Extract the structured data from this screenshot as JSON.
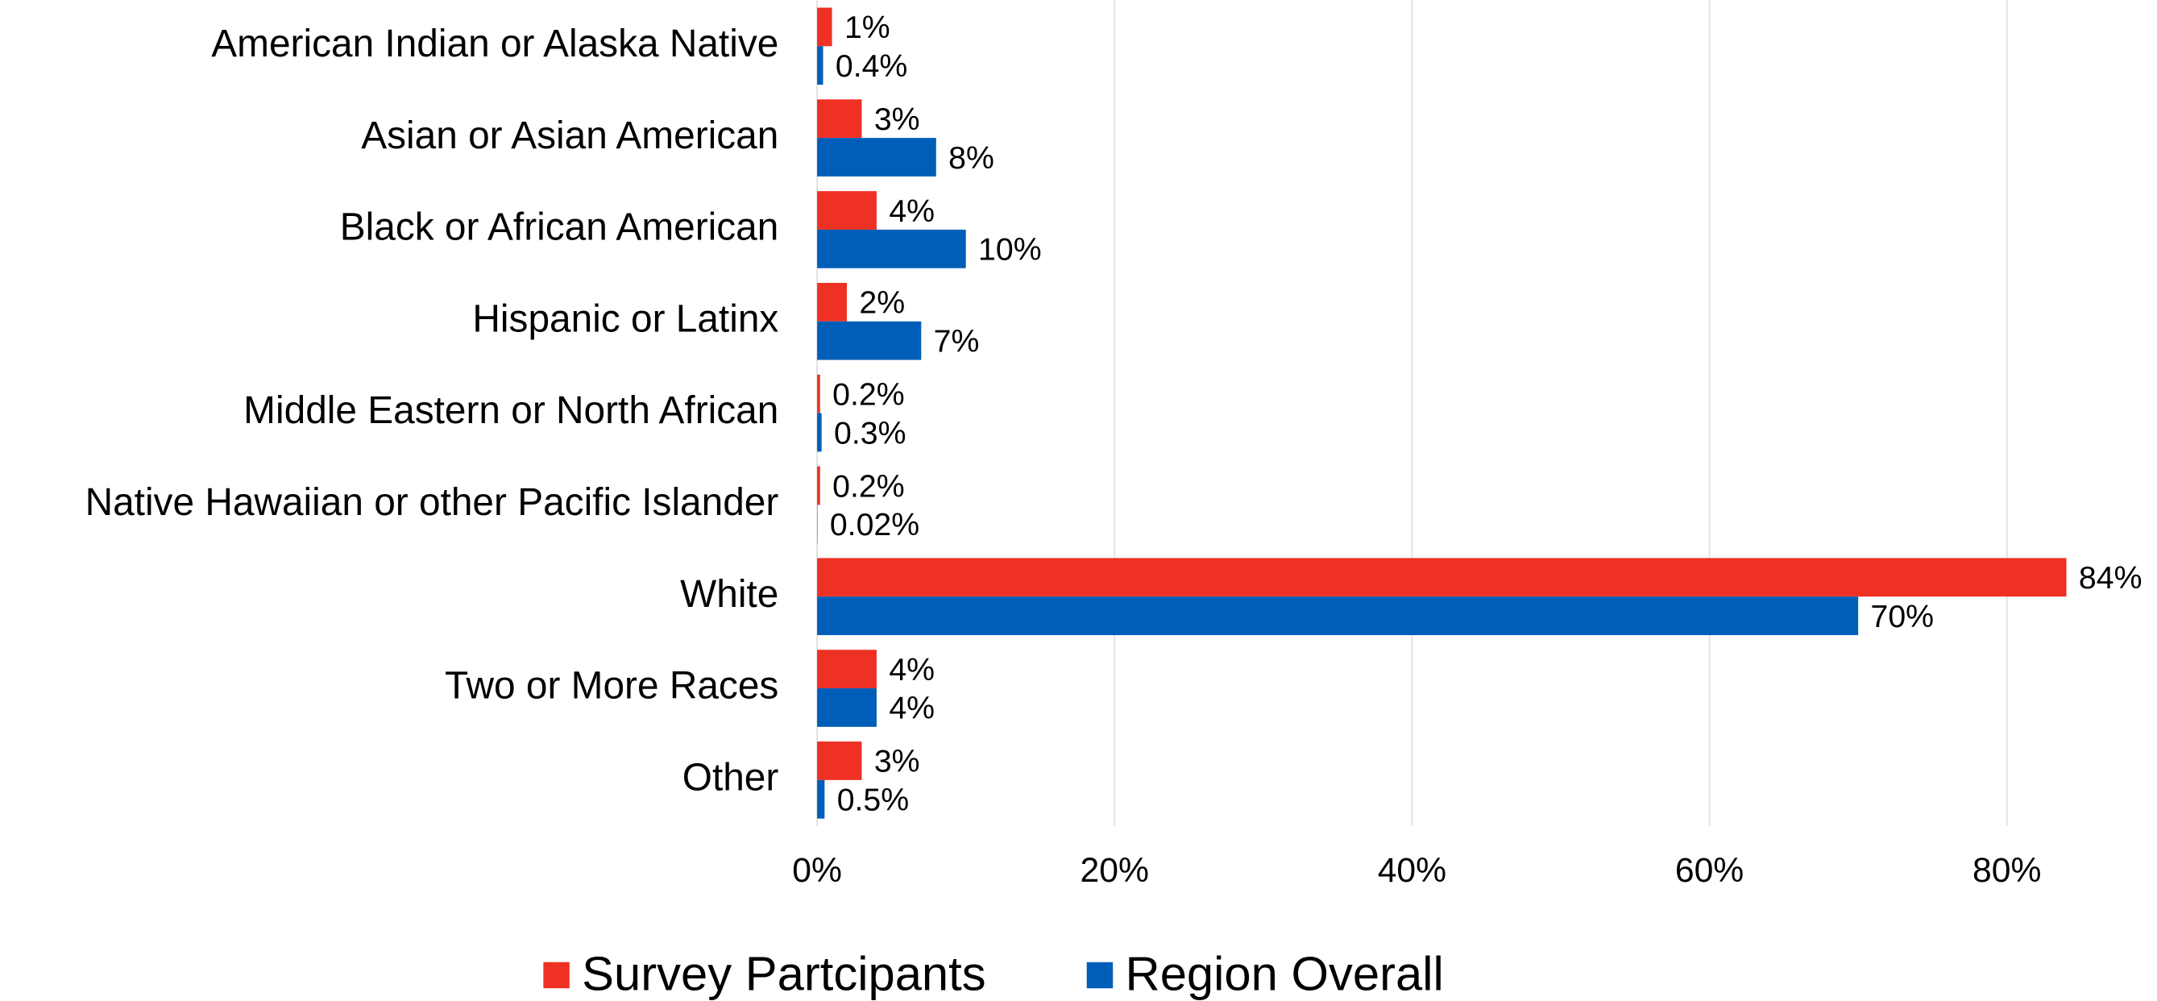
{
  "chart_data": {
    "type": "hbar",
    "categories": [
      "American Indian or Alaska Native",
      "Asian or Asian American",
      "Black or African American",
      "Hispanic or Latinx",
      "Middle Eastern or North African",
      "Native Hawaiian or other Pacific Islander",
      "White",
      "Two or More Races",
      "Other"
    ],
    "series": [
      {
        "name": "Survey Partcipants",
        "color": "#ee3124",
        "values": [
          1,
          3,
          4,
          2,
          0.2,
          0.2,
          84,
          4,
          3
        ],
        "value_labels": [
          "1%",
          "3%",
          "4%",
          "2%",
          "0.2%",
          "0.2%",
          "84%",
          "4%",
          "3%"
        ]
      },
      {
        "name": "Region Overall",
        "color": "#005eb8",
        "values": [
          0.4,
          8,
          10,
          7,
          0.3,
          0.02,
          70,
          4,
          0.5
        ],
        "value_labels": [
          "0.4%",
          "8%",
          "10%",
          "7%",
          "0.3%",
          "0.02%",
          "70%",
          "4%",
          "0.5%"
        ]
      }
    ],
    "xlim": [
      0,
      90
    ],
    "xticks": [
      {
        "value": 0,
        "label": "0%"
      },
      {
        "value": 20,
        "label": "20%"
      },
      {
        "value": 40,
        "label": "40%"
      },
      {
        "value": 60,
        "label": "60%"
      },
      {
        "value": 80,
        "label": "80%"
      }
    ],
    "grid": true,
    "legend": "bottom"
  }
}
